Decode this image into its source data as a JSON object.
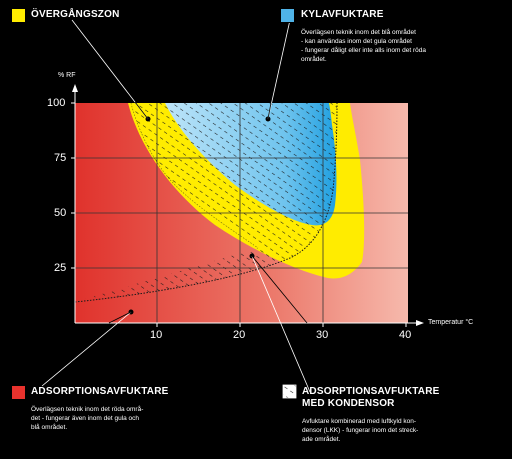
{
  "legend": {
    "transition": {
      "title": "ÖVERGÅNGSZON",
      "color": "#ffec00"
    },
    "cooling": {
      "title": "KYLAVFUKTARE",
      "color": "#4fb3e8",
      "description": "Överlägsen teknik inom det blå området\n- kan användas inom det  gula området\n- fungerar dåligt eller inte alls inom det röda\nområdet."
    },
    "adsorption": {
      "title": "ADSORPTIONSAVFUKTARE",
      "color": "#e8322d",
      "description": "Överlägsen teknik inom det röda områ-\ndet - fungerar även inom det gula och\nblå området."
    },
    "adsorption_condenser": {
      "title_line1": "ADSORPTIONSAVFUKTARE",
      "title_line2": "MED KONDENSOR",
      "description": "Avfuktare kombinerad med luftkyld kon-\ndensor (LKK) - fungerar inom det streck-\nade området."
    }
  },
  "chart_data": {
    "type": "area",
    "xlabel": "Temperatur °C",
    "ylabel": "% RF",
    "xlim": [
      0,
      40
    ],
    "ylim": [
      0,
      100
    ],
    "x_ticks": [
      10,
      20,
      30,
      40
    ],
    "y_ticks": [
      25,
      50,
      75,
      100
    ],
    "grid": true,
    "regions": [
      {
        "name": "ÖVERGÅNGSZON",
        "color": "#ffec00"
      },
      {
        "name": "KYLAVFUKTARE",
        "color": "#4fb3e8"
      },
      {
        "name": "ADSORPTIONSAVFUKTARE",
        "color": "#e8322d"
      },
      {
        "name": "ADSORPTIONSAVFUKTARE MED KONDENSOR",
        "pattern": "hatched"
      }
    ]
  }
}
